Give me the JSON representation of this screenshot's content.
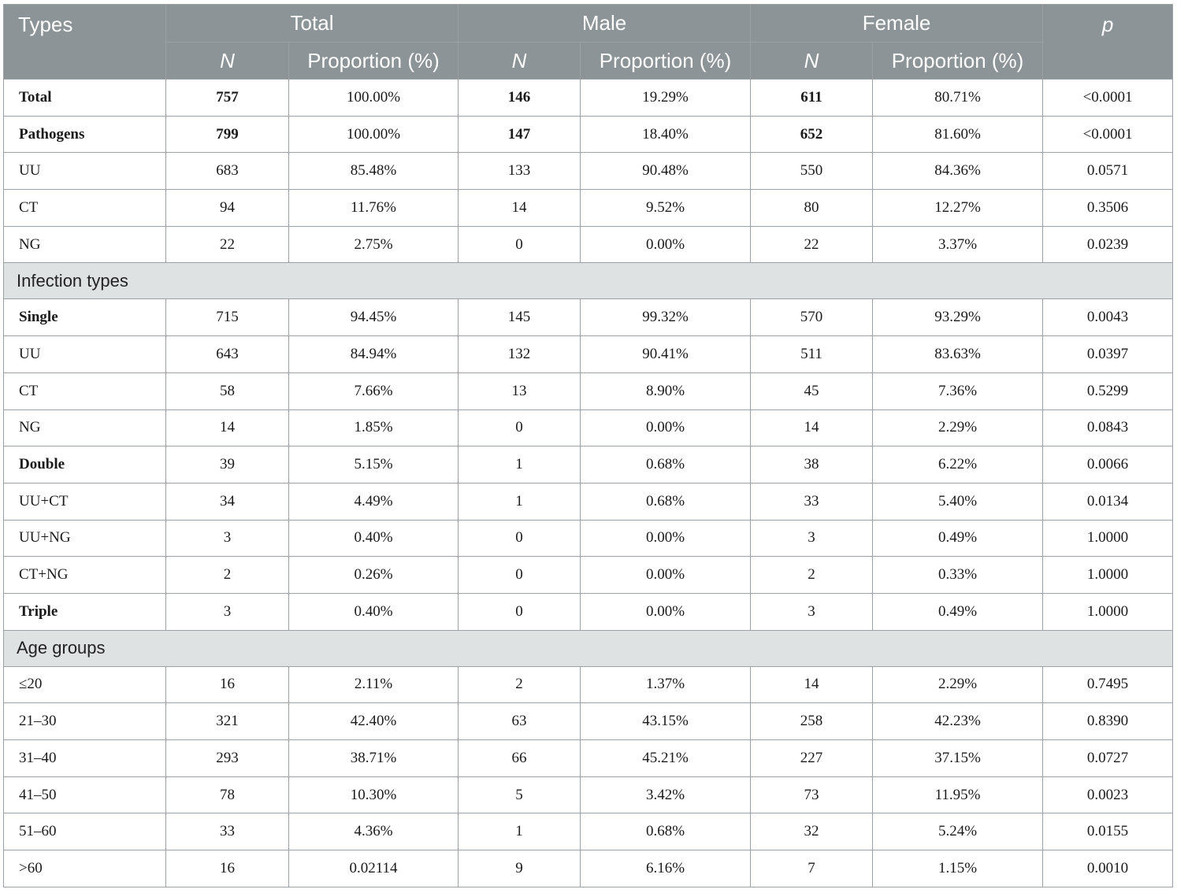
{
  "header": {
    "types": "Types",
    "groups": [
      "Total",
      "Male",
      "Female"
    ],
    "n": "N",
    "proportion": "Proportion (%)",
    "p": "p"
  },
  "rows": [
    {
      "kind": "row",
      "bold": true,
      "cells": [
        "Total",
        "757",
        "100.00%",
        "146",
        "19.29%",
        "611",
        "80.71%",
        "<0.0001"
      ]
    },
    {
      "kind": "row",
      "bold": true,
      "cells": [
        "Pathogens",
        "799",
        "100.00%",
        "147",
        "18.40%",
        "652",
        "81.60%",
        "<0.0001"
      ]
    },
    {
      "kind": "row",
      "bold": false,
      "cells": [
        "UU",
        "683",
        "85.48%",
        "133",
        "90.48%",
        "550",
        "84.36%",
        "0.0571"
      ]
    },
    {
      "kind": "row",
      "bold": false,
      "cells": [
        "CT",
        "94",
        "11.76%",
        "14",
        "9.52%",
        "80",
        "12.27%",
        "0.3506"
      ]
    },
    {
      "kind": "row",
      "bold": false,
      "cells": [
        "NG",
        "22",
        "2.75%",
        "0",
        "0.00%",
        "22",
        "3.37%",
        "0.0239"
      ]
    },
    {
      "kind": "section",
      "label": "Infection types"
    },
    {
      "kind": "row",
      "bold": "label",
      "cells": [
        "Single",
        "715",
        "94.45%",
        "145",
        "99.32%",
        "570",
        "93.29%",
        "0.0043"
      ]
    },
    {
      "kind": "row",
      "bold": false,
      "cells": [
        "UU",
        "643",
        "84.94%",
        "132",
        "90.41%",
        "511",
        "83.63%",
        "0.0397"
      ]
    },
    {
      "kind": "row",
      "bold": false,
      "cells": [
        "CT",
        "58",
        "7.66%",
        "13",
        "8.90%",
        "45",
        "7.36%",
        "0.5299"
      ]
    },
    {
      "kind": "row",
      "bold": false,
      "cells": [
        "NG",
        "14",
        "1.85%",
        "0",
        "0.00%",
        "14",
        "2.29%",
        "0.0843"
      ]
    },
    {
      "kind": "row",
      "bold": "label",
      "cells": [
        "Double",
        "39",
        "5.15%",
        "1",
        "0.68%",
        "38",
        "6.22%",
        "0.0066"
      ]
    },
    {
      "kind": "row",
      "bold": false,
      "cells": [
        "UU+CT",
        "34",
        "4.49%",
        "1",
        "0.68%",
        "33",
        "5.40%",
        "0.0134"
      ]
    },
    {
      "kind": "row",
      "bold": false,
      "cells": [
        "UU+NG",
        "3",
        "0.40%",
        "0",
        "0.00%",
        "3",
        "0.49%",
        "1.0000"
      ]
    },
    {
      "kind": "row",
      "bold": false,
      "cells": [
        "CT+NG",
        "2",
        "0.26%",
        "0",
        "0.00%",
        "2",
        "0.33%",
        "1.0000"
      ]
    },
    {
      "kind": "row",
      "bold": "label",
      "cells": [
        "Triple",
        "3",
        "0.40%",
        "0",
        "0.00%",
        "3",
        "0.49%",
        "1.0000"
      ]
    },
    {
      "kind": "section",
      "label": "Age groups"
    },
    {
      "kind": "row",
      "bold": false,
      "cells": [
        "≤20",
        "16",
        "2.11%",
        "2",
        "1.37%",
        "14",
        "2.29%",
        "0.7495"
      ]
    },
    {
      "kind": "row",
      "bold": false,
      "cells": [
        "21–30",
        "321",
        "42.40%",
        "63",
        "43.15%",
        "258",
        "42.23%",
        "0.8390"
      ]
    },
    {
      "kind": "row",
      "bold": false,
      "cells": [
        "31–40",
        "293",
        "38.71%",
        "66",
        "45.21%",
        "227",
        "37.15%",
        "0.0727"
      ]
    },
    {
      "kind": "row",
      "bold": false,
      "cells": [
        "41–50",
        "78",
        "10.30%",
        "5",
        "3.42%",
        "73",
        "11.95%",
        "0.0023"
      ]
    },
    {
      "kind": "row",
      "bold": false,
      "cells": [
        "51–60",
        "33",
        "4.36%",
        "1",
        "0.68%",
        "32",
        "5.24%",
        "0.0155"
      ]
    },
    {
      "kind": "row",
      "bold": false,
      "cells": [
        ">60",
        "16",
        "0.02114",
        "9",
        "6.16%",
        "7",
        "1.15%",
        "0.0010"
      ]
    }
  ]
}
